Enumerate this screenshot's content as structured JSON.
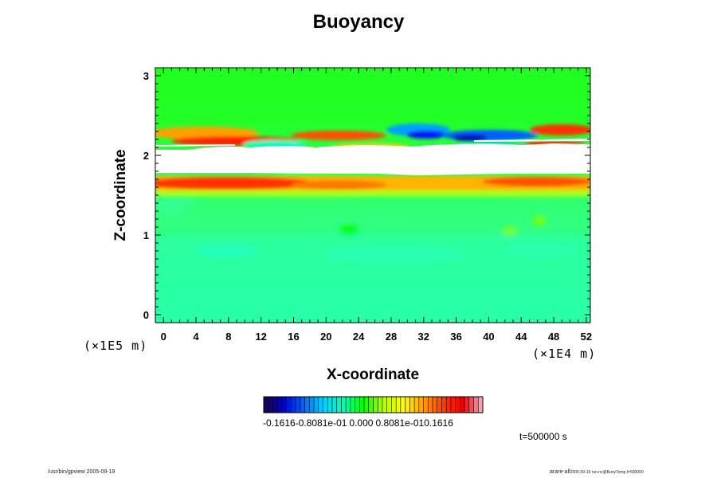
{
  "chart_data": {
    "type": "heatmap",
    "title": "Buoyancy",
    "xlabel": "X-coordinate",
    "ylabel": "Z-coordinate",
    "x_unit": "(×1E4 m)",
    "y_unit": "(×1E5 m)",
    "xlim": [
      -1,
      52.5
    ],
    "ylim": [
      -0.1,
      3.1
    ],
    "x_ticks": [
      "0",
      "4",
      "8",
      "12",
      "16",
      "20",
      "24",
      "28",
      "32",
      "36",
      "40",
      "44",
      "48",
      "52"
    ],
    "y_ticks": [
      "0",
      "1",
      "2",
      "3"
    ],
    "colorbar": {
      "range": [
        -0.1616,
        0.1616
      ],
      "tick_labels": [
        "-0.1616",
        "-0.8081e-01",
        "0.000",
        "0.8081e-01",
        "0.1616"
      ],
      "colormap": [
        "#1a0050",
        "#0000c8",
        "#0064ff",
        "#00d2ff",
        "#00ffb4",
        "#00ff00",
        "#b4ff00",
        "#ffff00",
        "#ffa000",
        "#ff3c00",
        "#e60000",
        "#ffb4c8"
      ]
    },
    "background_value": 0.0,
    "features": [
      {
        "name": "positive layer",
        "z_range": [
          1.6,
          1.72
        ],
        "value_range": [
          0.1,
          0.16
        ]
      },
      {
        "name": "missing band",
        "z_range": [
          1.75,
          2.05
        ],
        "value": null
      },
      {
        "name": "mixed layer",
        "z_range": [
          2.05,
          2.32
        ],
        "value_range": [
          -0.16,
          0.16
        ]
      },
      {
        "name": "slightly negative lower region",
        "z_range": [
          0.0,
          0.9
        ],
        "value_range": [
          -0.03,
          0.0
        ]
      }
    ]
  },
  "time_label": "t=500000 s",
  "footer_left": "/usr/bin/gpview 2005-09-19",
  "footer_right_main": "arare-all",
  "footer_right_small": "2005-09-19 run.nc@BuoyTemp,t=500000"
}
